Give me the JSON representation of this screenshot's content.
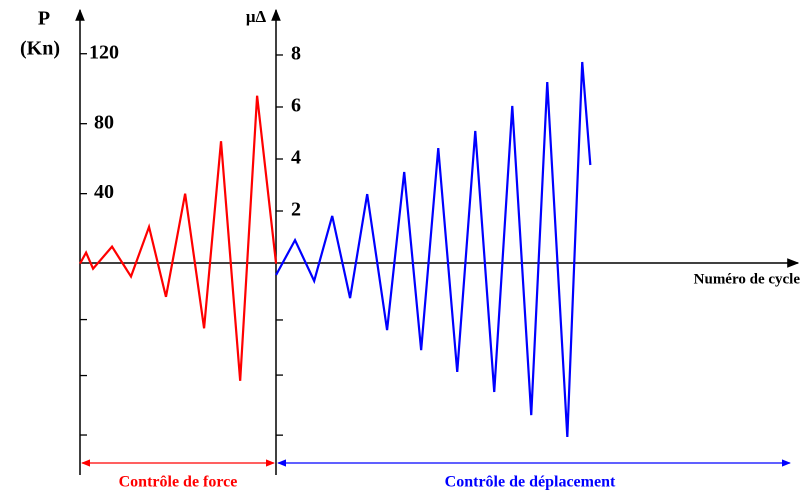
{
  "chart_data": {
    "type": "line",
    "ylabel": [
      "P",
      "(Kn)"
    ],
    "y2label": "μΔ",
    "xlabel": "Numéro de cycle",
    "xlim": [
      0,
      39
    ],
    "ylim": [
      -118,
      145
    ],
    "yticks": [
      40,
      80,
      120
    ],
    "yticks_minor": [
      -32,
      -64,
      -98
    ],
    "y2lim": [
      -7.96,
      9.73
    ],
    "y2ticks": [
      2,
      4,
      6,
      8
    ],
    "y2ticks_minor": [
      -2.19,
      -4.31,
      -6.62
    ],
    "series": [
      {
        "name": "Contrôle de force",
        "color": "#ff0000",
        "x": [
          0,
          0.33,
          0.71,
          1.74,
          2.77,
          3.75,
          4.67,
          5.71,
          6.74,
          7.66,
          8.7,
          9.62,
          10.65
        ],
        "values": [
          0,
          6.3,
          -2.9,
          9.7,
          -7.4,
          21,
          -19,
          40,
          -37,
          70,
          -67,
          96,
          0
        ]
      },
      {
        "name": "Contrôle de déplacement",
        "color": "#0000ff",
        "axis": "y2",
        "x": [
          10.65,
          11.68,
          12.72,
          13.7,
          14.67,
          15.6,
          16.68,
          17.61,
          18.53,
          19.46,
          20.49,
          21.47,
          22.5,
          23.48,
          24.51,
          25.38,
          26.47,
          27.28,
          27.72
        ],
        "values": [
          -0.46,
          0.88,
          -0.69,
          1.81,
          -1.35,
          2.65,
          -2.58,
          3.5,
          -3.35,
          4.42,
          -4.19,
          5.08,
          -4.96,
          6.04,
          -5.85,
          6.96,
          -6.69,
          7.73,
          3.77
        ]
      }
    ]
  }
}
